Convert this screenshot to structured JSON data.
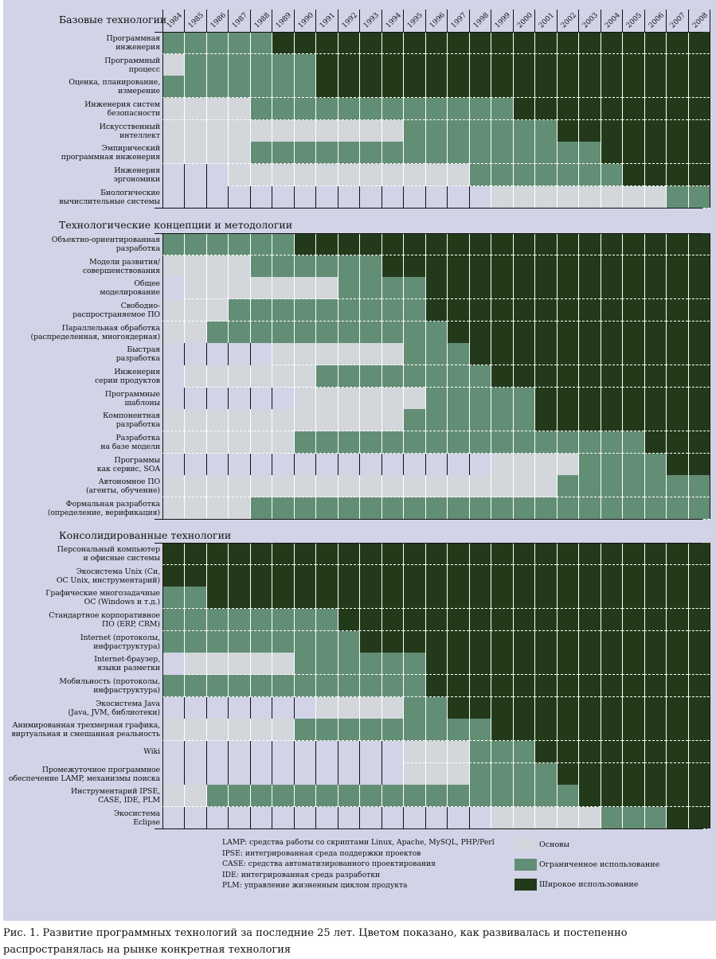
{
  "chart_data": {
    "type": "heatmap",
    "title": "",
    "x": [
      "1984",
      "1985",
      "1986",
      "1987",
      "1988",
      "1989",
      "1990",
      "1991",
      "1992",
      "1993",
      "1994",
      "1995",
      "1996",
      "1997",
      "1998",
      "1999",
      "2000",
      "2001",
      "2002",
      "2003",
      "2004",
      "2005",
      "2006",
      "2007",
      "2008"
    ],
    "levels": {
      "0": "нет",
      "1": "Основы",
      "2": "Ограниченное использование",
      "3": "Широкое использование"
    },
    "colors": {
      "0": "#d2d3e6",
      "1": "#d3d6da",
      "2": "#628e76",
      "3": "#233a1a"
    },
    "sections": [
      {
        "title": "Базовые технологии",
        "rows": [
          {
            "label": "Программная\nинженерия",
            "values": "2222233333333333333333333"
          },
          {
            "label": "Программный\nпроцесс",
            "values": "1222222333333333333333333"
          },
          {
            "label": "Оценка, планирование,\nизмерение",
            "values": "2222222333333333333333333"
          },
          {
            "label": "Инженерия систем\nбезопасности",
            "values": "1111222222222222333333333"
          },
          {
            "label": "Искусственный\nинтеллект",
            "values": "1111111111122222223333333"
          },
          {
            "label": "Эмпирический\nпрограммная инженерия",
            "values": "1111222222222222222233333"
          },
          {
            "label": "Инженерия\nэргономики",
            "values": "0001111111111122222223333"
          },
          {
            "label": "Биологические\nвычислительные системы",
            "values": "0000000000000001111111122"
          }
        ]
      },
      {
        "title": "Технологические концепции и методологии",
        "rows": [
          {
            "label": "Объектно-ориентированная\nразработка",
            "values": "2222223333333333333333333"
          },
          {
            "label": "Модели развития/\nсовершенствования",
            "values": "1111222222333333333333333"
          },
          {
            "label": "Общее\nмоделирование",
            "values": "0111111122223333333333333"
          },
          {
            "label": "Свободно-\nраспространяемое ПО",
            "values": "1112222222223333333333333"
          },
          {
            "label": "Параллельная обработка\n(распределенная, многоядерная)",
            "values": "1122222222222333333333333"
          },
          {
            "label": "Быстрая\nразработка",
            "values": "0000011111122233333333333"
          },
          {
            "label": "Инженерия\nсерии продуктов",
            "values": "0111111222222223333333333"
          },
          {
            "label": "Программные\nшаблоны",
            "values": "0000001111112222233333333"
          },
          {
            "label": "Компонентная\nразработка",
            "values": "1111111111122222233333333"
          },
          {
            "label": "Разработка\nна базе модели",
            "values": "1111112222222222222222333"
          },
          {
            "label": "Программы\nкак сервис, SOA",
            "values": "0000000000000001111222233"
          },
          {
            "label": "Автономное ПО\n(агенты, обучение)",
            "values": "1111111111111111112222222"
          },
          {
            "label": "Формальная разработка\n(определение, верификация)",
            "values": "1111222222222222222222222"
          }
        ]
      },
      {
        "title": "Консолидированные технологии",
        "rows": [
          {
            "label": "Персональный компьютер\nи офисные системы",
            "values": "3333333333333333333333333"
          },
          {
            "label": "Экосистема Unix (Си,\nОС Unix, инструментарий)",
            "values": "3333333333333333333333333"
          },
          {
            "label": "Графические многозадачные\nОС (Windows и т.д.)",
            "values": "2233333333333333333333333"
          },
          {
            "label": "Стандартное корпоративное\nПО (ERP, CRM)",
            "values": "2222222233333333333333333"
          },
          {
            "label": "Internet (протоколы,\nинфраструктура)",
            "values": "2222222223333333333333333"
          },
          {
            "label": "Internet-браузер,\nязыки разметки",
            "values": "0111112222223333333333333"
          },
          {
            "label": "Мобильность (протоколы,\nинфраструктура)",
            "values": "2222222222223333333333333"
          },
          {
            "label": "Экосистема Java\n(Java, JVM, библиотеки)",
            "values": "0000000111122333333333333"
          },
          {
            "label": "Анимированная трехмерная графика,\nвиртуальная и смешанная реальность",
            "values": "1111112222222223333333333"
          },
          {
            "label": "Wiki",
            "values": "0000000000011122233333333"
          },
          {
            "label": "Промежуточное программное\nобеспечение LAMP, механизмы поиска",
            "values": "0000000000011122223333333"
          },
          {
            "label": "Инструментарий IPSE,\nCASE, IDE, PLM",
            "values": "1122222222222222222333333"
          },
          {
            "label": "Экосистема\nEclipse",
            "values": "0000000000000001111122233"
          }
        ]
      }
    ],
    "legend": [
      "Основы",
      "Ограниченное использование",
      "Широкое использование"
    ],
    "legend_placement": "bottom-right",
    "notes": [
      "LAMP: средства работы со скриптами Linux, Apache, MySQL, PHP/Perl",
      "IPSE: интегрированная среда поддержки проектов",
      "CASE: средства автоматизированного проектирования",
      "IDE: интегрированная среда разработки",
      "PLM: управление жизненным циклом продукта"
    ]
  },
  "caption": "Рис. 1. Развитие программных технологий за последние 25 лет. Цветом показано, как развивалась и постепенно распространялась на рынке конкретная технология"
}
